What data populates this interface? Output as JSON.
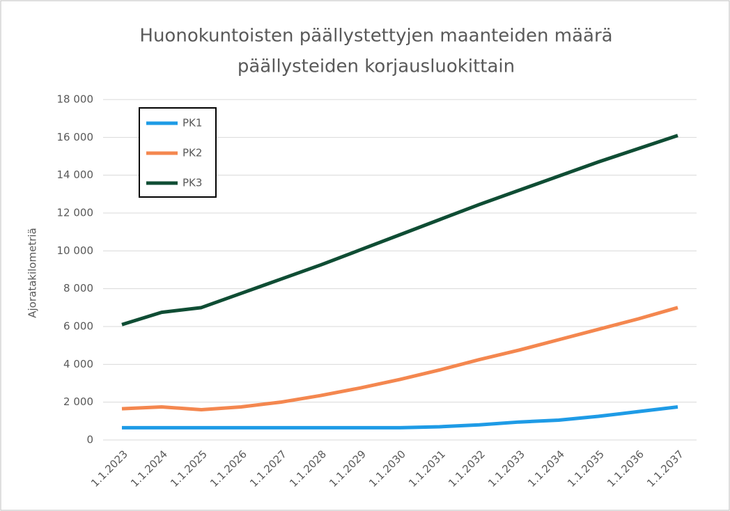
{
  "chart_data": {
    "type": "line",
    "title": [
      "Huonokuntoisten päällystettyjen maanteiden määrä",
      "päällysteiden korjausluokittain"
    ],
    "y_label": "Ajoratakilometriä",
    "categories": [
      "1.1.2023",
      "1.1.2024",
      "1.1.2025",
      "1.1.2026",
      "1.1.2027",
      "1.1.2028",
      "1.1.2029",
      "1.1.2030",
      "1.1.2031",
      "1.1.2032",
      "1.1.2033",
      "1.1.2034",
      "1.1.2035",
      "1.1.2036",
      "1.1.2037"
    ],
    "series": [
      {
        "name": "PK1",
        "color": "#1e9be6",
        "values": [
          650,
          650,
          650,
          650,
          650,
          650,
          650,
          650,
          700,
          800,
          950,
          1050,
          1250,
          1500,
          1750
        ]
      },
      {
        "name": "PK2",
        "color": "#f4874f",
        "values": [
          1650,
          1750,
          1600,
          1750,
          2000,
          2350,
          2750,
          3200,
          3700,
          4250,
          4750,
          5300,
          5850,
          6400,
          7000
        ]
      },
      {
        "name": "PK3",
        "color": "#0f4d34",
        "values": [
          6100,
          6750,
          7000,
          7750,
          8500,
          9250,
          10050,
          10850,
          11650,
          12450,
          13200,
          13950,
          14700,
          15400,
          16100
        ]
      }
    ],
    "ylim": [
      0,
      18000
    ],
    "yticks": [
      0,
      {
        "value": 2000,
        "label": "2 000"
      },
      {
        "value": 4000,
        "label": "4 000"
      },
      {
        "value": 6000,
        "label": "6 000"
      },
      {
        "value": 8000,
        "label": "8 000"
      },
      {
        "value": 10000,
        "label": "10 000"
      },
      {
        "value": 12000,
        "label": "12 000"
      },
      {
        "value": 14000,
        "label": "14 000"
      },
      {
        "value": 16000,
        "label": "16 000"
      },
      {
        "value": 18000,
        "label": "18 000"
      }
    ],
    "grid": true,
    "legend": "upper left"
  }
}
